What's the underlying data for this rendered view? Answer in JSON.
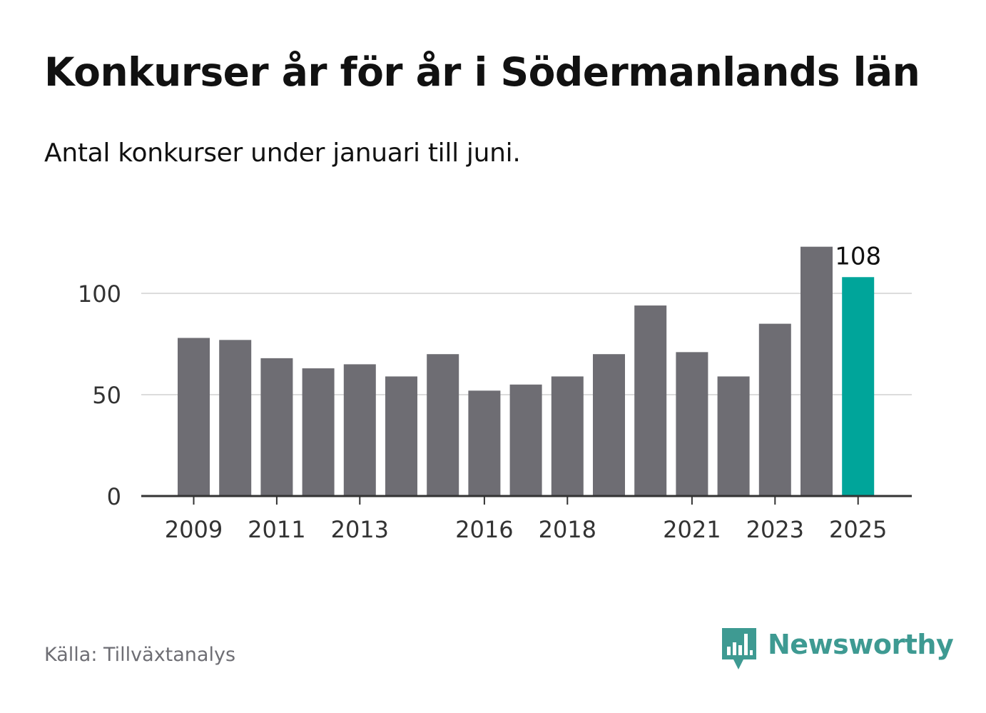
{
  "title": "Konkurser år för år i Södermanlands län",
  "subtitle": "Antal konkurser under januari till juni.",
  "source": "Källa: Tillväxtanalys",
  "brand": {
    "name": "Newsworthy",
    "icon": "bar-chart-speech-bubble-icon",
    "color": "#3e9a92"
  },
  "colors": {
    "bar": "#6e6d73",
    "highlight": "#00a59a",
    "grid": "#dcdcdc",
    "axis": "#333333",
    "tick_text": "#333333"
  },
  "chart_data": {
    "type": "bar",
    "categories": [
      "2009",
      "2010",
      "2011",
      "2012",
      "2013",
      "2014",
      "2015",
      "2016",
      "2017",
      "2018",
      "2019",
      "2020",
      "2021",
      "2022",
      "2023",
      "2024",
      "2025"
    ],
    "values": [
      78,
      77,
      68,
      63,
      65,
      59,
      70,
      52,
      55,
      59,
      70,
      94,
      71,
      59,
      85,
      123,
      108
    ],
    "highlight_category": "2025",
    "data_labels": [
      {
        "category": "2025",
        "text": "108"
      }
    ],
    "x_tick_labels": [
      "2009",
      "2011",
      "2013",
      "2016",
      "2018",
      "2021",
      "2023",
      "2025"
    ],
    "y_ticks": [
      0,
      50,
      100
    ],
    "y_tick_labels": [
      "0",
      "50",
      "100"
    ],
    "ylim": [
      0,
      130
    ],
    "grid": true,
    "legend": false,
    "xlabel": "",
    "ylabel": ""
  }
}
